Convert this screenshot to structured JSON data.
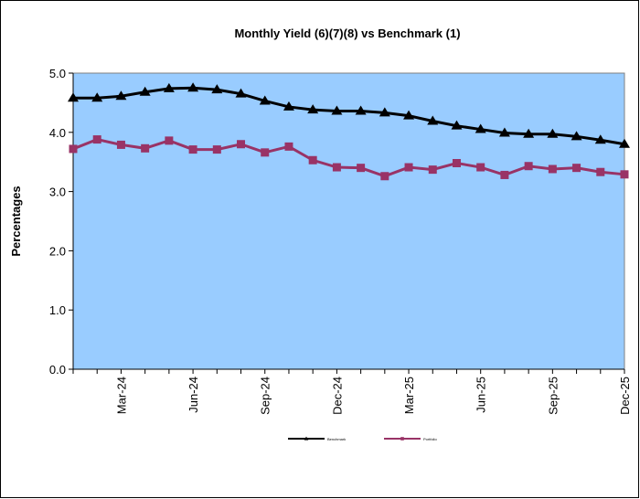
{
  "chart_data": {
    "type": "line",
    "title": "Monthly Yield (6)(7)(8) vs Benchmark (1)",
    "y_label": "Percentages",
    "categories": [
      null,
      null,
      "Mar-24",
      null,
      null,
      "Jun-24",
      null,
      null,
      "Sep-24",
      null,
      null,
      "Dec-24",
      null,
      null,
      "Mar-25",
      null,
      null,
      "Jun-25",
      null,
      null,
      "Sep-25",
      null,
      null,
      "Dec-25"
    ],
    "series": [
      {
        "name": "Benchmark",
        "color": "#000000",
        "marker": "triangle",
        "values": [
          4.58,
          4.58,
          4.61,
          4.68,
          4.74,
          4.75,
          4.72,
          4.65,
          4.53,
          4.43,
          4.38,
          4.36,
          4.36,
          4.33,
          4.28,
          4.19,
          4.11,
          4.05,
          3.99,
          3.97,
          3.97,
          3.93,
          3.87,
          3.8
        ]
      },
      {
        "name": "Portfolio",
        "color": "#993366",
        "marker": "square",
        "values": [
          3.72,
          3.88,
          3.79,
          3.73,
          3.86,
          3.71,
          3.71,
          3.8,
          3.66,
          3.76,
          3.53,
          3.41,
          3.4,
          3.26,
          3.41,
          3.37,
          3.48,
          3.41,
          3.28,
          3.43,
          3.38,
          3.4,
          3.33,
          3.29
        ]
      }
    ],
    "ylim": [
      0,
      5
    ],
    "yticks": [
      {
        "value": 0,
        "label": "0.0"
      },
      {
        "value": 1,
        "label": "1.0"
      },
      {
        "value": 2,
        "label": "2.0"
      },
      {
        "value": 3,
        "label": "3.0"
      },
      {
        "value": 4,
        "label": "4.0"
      },
      {
        "value": 5,
        "label": "5.0"
      }
    ],
    "plot_background": "#99ccff",
    "legend": "bottom"
  }
}
